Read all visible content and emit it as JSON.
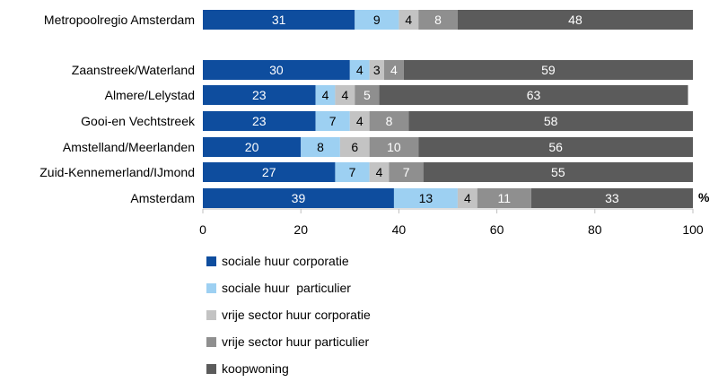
{
  "chart_data": {
    "type": "bar",
    "orientation": "horizontal",
    "stacked": true,
    "categories": [
      "Metropoolregio Amsterdam",
      "Zaanstreek/Waterland",
      "Almere/Lelystad",
      "Gooi-en Vechtstreek",
      "Amstelland/Meerlanden",
      "Zuid-Kennemerland/IJmond",
      "Amsterdam"
    ],
    "series": [
      {
        "name": "sociale huur corporatie",
        "color": "#0e4d9e",
        "label_color": "#ffffff",
        "values": [
          31,
          30,
          23,
          23,
          20,
          27,
          39
        ]
      },
      {
        "name": "sociale huur  particulier",
        "color": "#9dd0f2",
        "label_color": "#000000",
        "values": [
          9,
          4,
          4,
          7,
          8,
          7,
          13
        ]
      },
      {
        "name": "vrije sector huur corporatie",
        "color": "#c3c3c3",
        "label_color": "#000000",
        "values": [
          4,
          3,
          4,
          4,
          6,
          4,
          4
        ]
      },
      {
        "name": "vrije sector huur particulier",
        "color": "#8f8f8f",
        "label_color": "#ffffff",
        "values": [
          8,
          4,
          5,
          8,
          10,
          7,
          11
        ]
      },
      {
        "name": "koopwoning",
        "color": "#5b5b5b",
        "label_color": "#ffffff",
        "values": [
          48,
          59,
          63,
          58,
          56,
          55,
          33
        ]
      }
    ],
    "xlim": [
      0,
      100
    ],
    "xticks": [
      "0",
      "20",
      "40",
      "60",
      "80",
      "100"
    ],
    "xunit": "%",
    "grid": false,
    "legend_position": "bottom-left"
  }
}
